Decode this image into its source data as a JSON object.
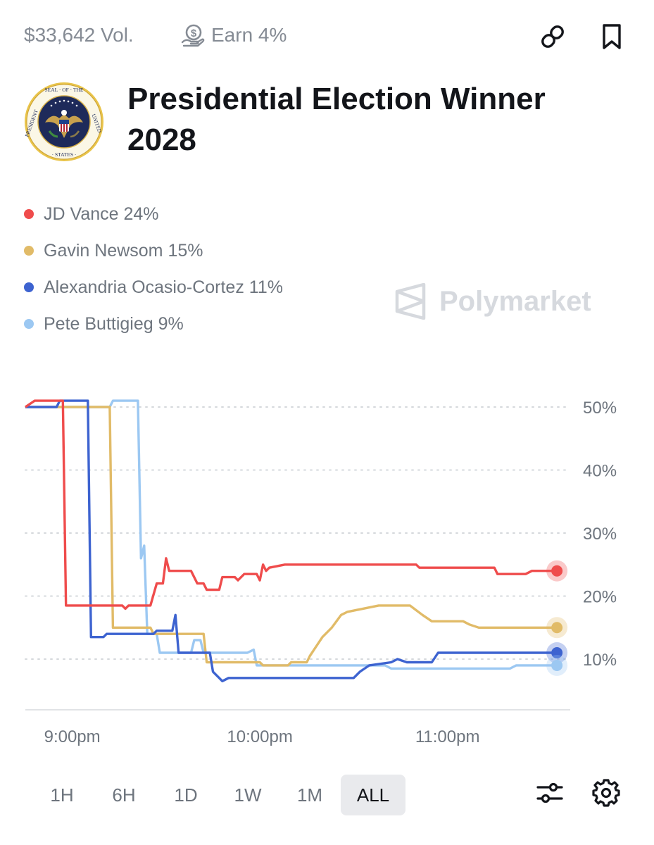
{
  "header": {
    "volume": "$33,642 Vol.",
    "earn": "Earn 4%"
  },
  "market": {
    "title_line1": "Presidential Election Winner",
    "title_line2": "2028"
  },
  "watermark": "Polymarket",
  "icons": {
    "earn": "earn-coin-icon",
    "link": "link-icon",
    "bookmark": "bookmark-icon",
    "seal": "presidential-seal-icon",
    "logo": "polymarket-logo-icon",
    "filters": "sliders-icon",
    "settings": "gear-icon"
  },
  "colors": {
    "vance": "#ef4c4c",
    "newsom": "#e1bb68",
    "aoc": "#3d63d0",
    "buttigieg": "#9cc8f2"
  },
  "ranges": [
    {
      "label": "1H",
      "active": false
    },
    {
      "label": "6H",
      "active": false
    },
    {
      "label": "1D",
      "active": false
    },
    {
      "label": "1W",
      "active": false
    },
    {
      "label": "1M",
      "active": false
    },
    {
      "label": "ALL",
      "active": true
    }
  ],
  "chart_data": {
    "type": "line",
    "x_unit": "time",
    "x_range": [
      "8:45pm",
      "11:37pm"
    ],
    "xticks": [
      "9:00pm",
      "10:00pm",
      "11:00pm"
    ],
    "yticks": [
      "50%",
      "40%",
      "30%",
      "20%",
      "10%"
    ],
    "ylim": [
      3,
      52
    ],
    "grid": true,
    "legend_position": "top-left",
    "series": [
      {
        "name": "JD Vance",
        "legend_label": "JD Vance 24%",
        "color": "#ef4c4c",
        "points": [
          [
            "8:45pm",
            50
          ],
          [
            "8:48pm",
            51
          ],
          [
            "8:57pm",
            51
          ],
          [
            "8:58pm",
            18.5
          ],
          [
            "9:16pm",
            18.5
          ],
          [
            "9:17pm",
            18
          ],
          [
            "9:18pm",
            18.5
          ],
          [
            "9:25pm",
            18.5
          ],
          [
            "9:27pm",
            22
          ],
          [
            "9:29pm",
            22
          ],
          [
            "9:30pm",
            26
          ],
          [
            "9:31pm",
            24
          ],
          [
            "9:38pm",
            24
          ],
          [
            "9:40pm",
            22
          ],
          [
            "9:42pm",
            22
          ],
          [
            "9:43pm",
            21
          ],
          [
            "9:47pm",
            21
          ],
          [
            "9:48pm",
            23
          ],
          [
            "9:52pm",
            23
          ],
          [
            "9:53pm",
            22.5
          ],
          [
            "9:55pm",
            23.5
          ],
          [
            "9:59pm",
            23.5
          ],
          [
            "10:00pm",
            22.5
          ],
          [
            "10:01pm",
            25
          ],
          [
            "10:02pm",
            24
          ],
          [
            "10:03pm",
            24.5
          ],
          [
            "10:08pm",
            25
          ],
          [
            "10:50pm",
            25
          ],
          [
            "10:51pm",
            24.5
          ],
          [
            "11:15pm",
            24.5
          ],
          [
            "11:16pm",
            23.5
          ],
          [
            "11:25pm",
            23.5
          ],
          [
            "11:27pm",
            24
          ],
          [
            "11:35pm",
            24
          ]
        ]
      },
      {
        "name": "Gavin Newsom",
        "legend_label": "Gavin Newsom 15%",
        "color": "#e1bb68",
        "points": [
          [
            "8:45pm",
            50
          ],
          [
            "9:12pm",
            50
          ],
          [
            "9:13pm",
            15
          ],
          [
            "9:25pm",
            15
          ],
          [
            "9:26pm",
            14
          ],
          [
            "9:42pm",
            14
          ],
          [
            "9:43pm",
            9.5
          ],
          [
            "10:00pm",
            9.5
          ],
          [
            "10:01pm",
            9
          ],
          [
            "10:09pm",
            9
          ],
          [
            "10:10pm",
            9.5
          ],
          [
            "10:15pm",
            9.5
          ],
          [
            "10:16pm",
            10.5
          ],
          [
            "10:18pm",
            12
          ],
          [
            "10:20pm",
            13.5
          ],
          [
            "10:23pm",
            15
          ],
          [
            "10:26pm",
            17
          ],
          [
            "10:28pm",
            17.5
          ],
          [
            "10:33pm",
            18
          ],
          [
            "10:38pm",
            18.5
          ],
          [
            "10:48pm",
            18.5
          ],
          [
            "10:52pm",
            17
          ],
          [
            "10:55pm",
            16
          ],
          [
            "11:05pm",
            16
          ],
          [
            "11:07pm",
            15.5
          ],
          [
            "11:10pm",
            15
          ],
          [
            "11:35pm",
            15
          ]
        ]
      },
      {
        "name": "Alexandria Ocasio-Cortez",
        "legend_label": "Alexandria Ocasio-Cortez 11%",
        "color": "#3d63d0",
        "points": [
          [
            "8:45pm",
            50
          ],
          [
            "8:55pm",
            50
          ],
          [
            "8:56pm",
            51
          ],
          [
            "9:05pm",
            51
          ],
          [
            "9:06pm",
            13.5
          ],
          [
            "9:10pm",
            13.5
          ],
          [
            "9:11pm",
            14
          ],
          [
            "9:26pm",
            14
          ],
          [
            "9:27pm",
            14.5
          ],
          [
            "9:32pm",
            14.5
          ],
          [
            "9:33pm",
            17
          ],
          [
            "9:34pm",
            11
          ],
          [
            "9:44pm",
            11
          ],
          [
            "9:45pm",
            8
          ],
          [
            "9:47pm",
            7
          ],
          [
            "9:48pm",
            6.5
          ],
          [
            "9:50pm",
            7
          ],
          [
            "10:20pm",
            7
          ],
          [
            "10:30pm",
            7
          ],
          [
            "10:32pm",
            8
          ],
          [
            "10:35pm",
            9
          ],
          [
            "10:42pm",
            9.5
          ],
          [
            "10:44pm",
            10
          ],
          [
            "10:47pm",
            9.5
          ],
          [
            "10:55pm",
            9.5
          ],
          [
            "10:57pm",
            11
          ],
          [
            "11:35pm",
            11
          ]
        ]
      },
      {
        "name": "Pete Buttigieg",
        "legend_label": "Pete Buttigieg 9%",
        "color": "#9cc8f2",
        "points": [
          [
            "8:45pm",
            50
          ],
          [
            "9:12pm",
            50
          ],
          [
            "9:13pm",
            51
          ],
          [
            "9:21pm",
            51
          ],
          [
            "9:22pm",
            26
          ],
          [
            "9:23pm",
            28
          ],
          [
            "9:24pm",
            14
          ],
          [
            "9:27pm",
            14
          ],
          [
            "9:28pm",
            11
          ],
          [
            "9:38pm",
            11
          ],
          [
            "9:39pm",
            13
          ],
          [
            "9:41pm",
            13
          ],
          [
            "9:42pm",
            11
          ],
          [
            "9:56pm",
            11
          ],
          [
            "9:58pm",
            11.5
          ],
          [
            "9:59pm",
            9
          ],
          [
            "10:10pm",
            9
          ],
          [
            "10:13pm",
            9
          ],
          [
            "10:40pm",
            9
          ],
          [
            "10:42pm",
            8.5
          ],
          [
            "11:20pm",
            8.5
          ],
          [
            "11:22pm",
            9
          ],
          [
            "11:35pm",
            9
          ]
        ]
      }
    ]
  }
}
